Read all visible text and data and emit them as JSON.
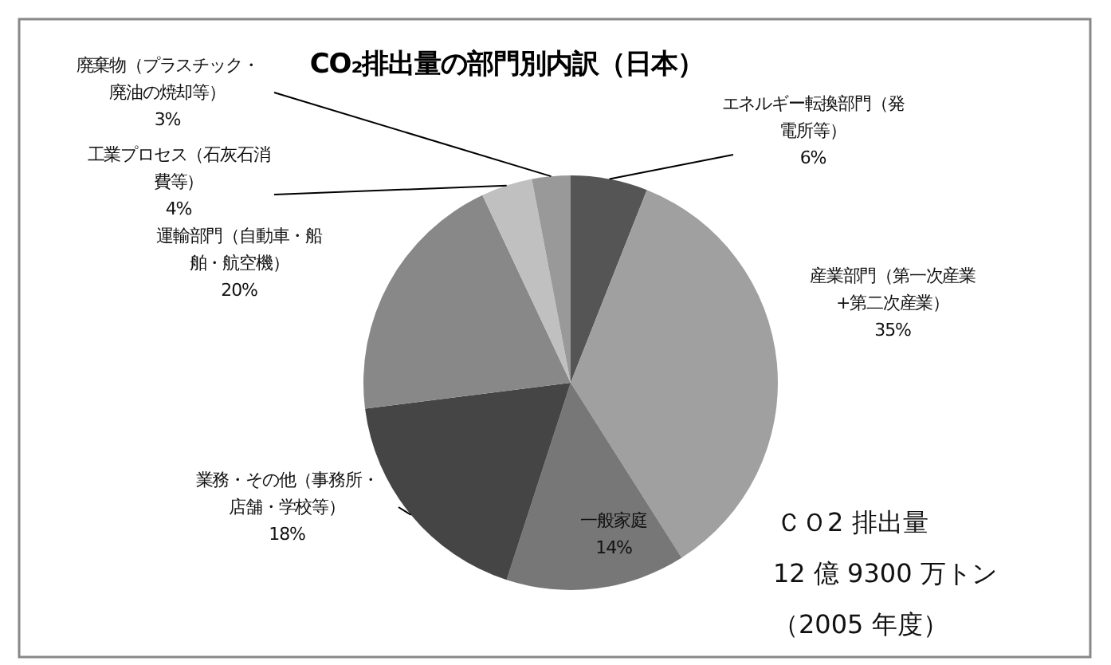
{
  "chart_data": {
    "type": "pie",
    "title": "CO₂排出量の部門別内訳（日本）",
    "categories": [
      "エネルギー転換部門（発電所等）",
      "産業部門（第一次産業+第二次産業）",
      "一般家庭",
      "業務・その他（事務所・店舗・学校等）",
      "運輸部門（自動車・船舶・航空機）",
      "工業プロセス（石灰石消費等）",
      "廃棄物（プラスチック・廃油の焼却等）"
    ],
    "values": [
      6,
      35,
      14,
      18,
      20,
      4,
      3
    ],
    "value_labels": [
      "6%",
      "35%",
      "14%",
      "18%",
      "20%",
      "4%",
      "3%"
    ],
    "colors": [
      "#555555",
      "#a0a0a0",
      "#777777",
      "#454545",
      "#888888",
      "#c0c0c0",
      "#999999"
    ],
    "annotations": [
      "ＣＯ2 排出量",
      "12 億 9300 万トン",
      "（2005 年度）"
    ]
  }
}
